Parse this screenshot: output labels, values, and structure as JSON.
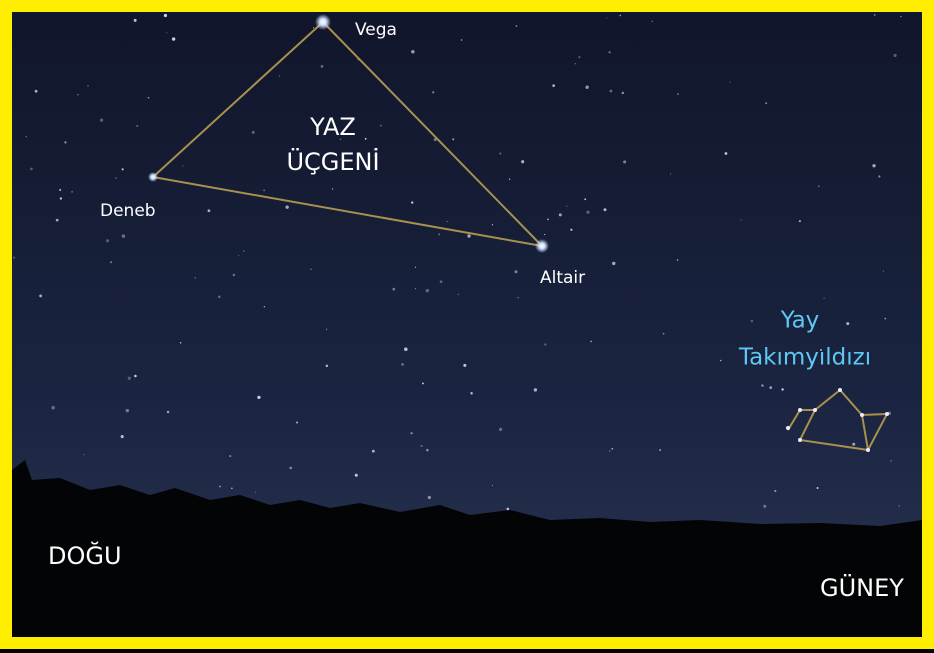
{
  "triangle": {
    "title_lines": [
      "YAZ",
      "ÜÇGENİ"
    ],
    "stars": [
      {
        "label": "Vega"
      },
      {
        "label": "Deneb"
      },
      {
        "label": "Altair"
      }
    ]
  },
  "constellation": {
    "name_lines": [
      "Yay",
      "Takımyıldızı"
    ]
  },
  "directions": {
    "east": "DOĞU",
    "south": "GÜNEY"
  }
}
